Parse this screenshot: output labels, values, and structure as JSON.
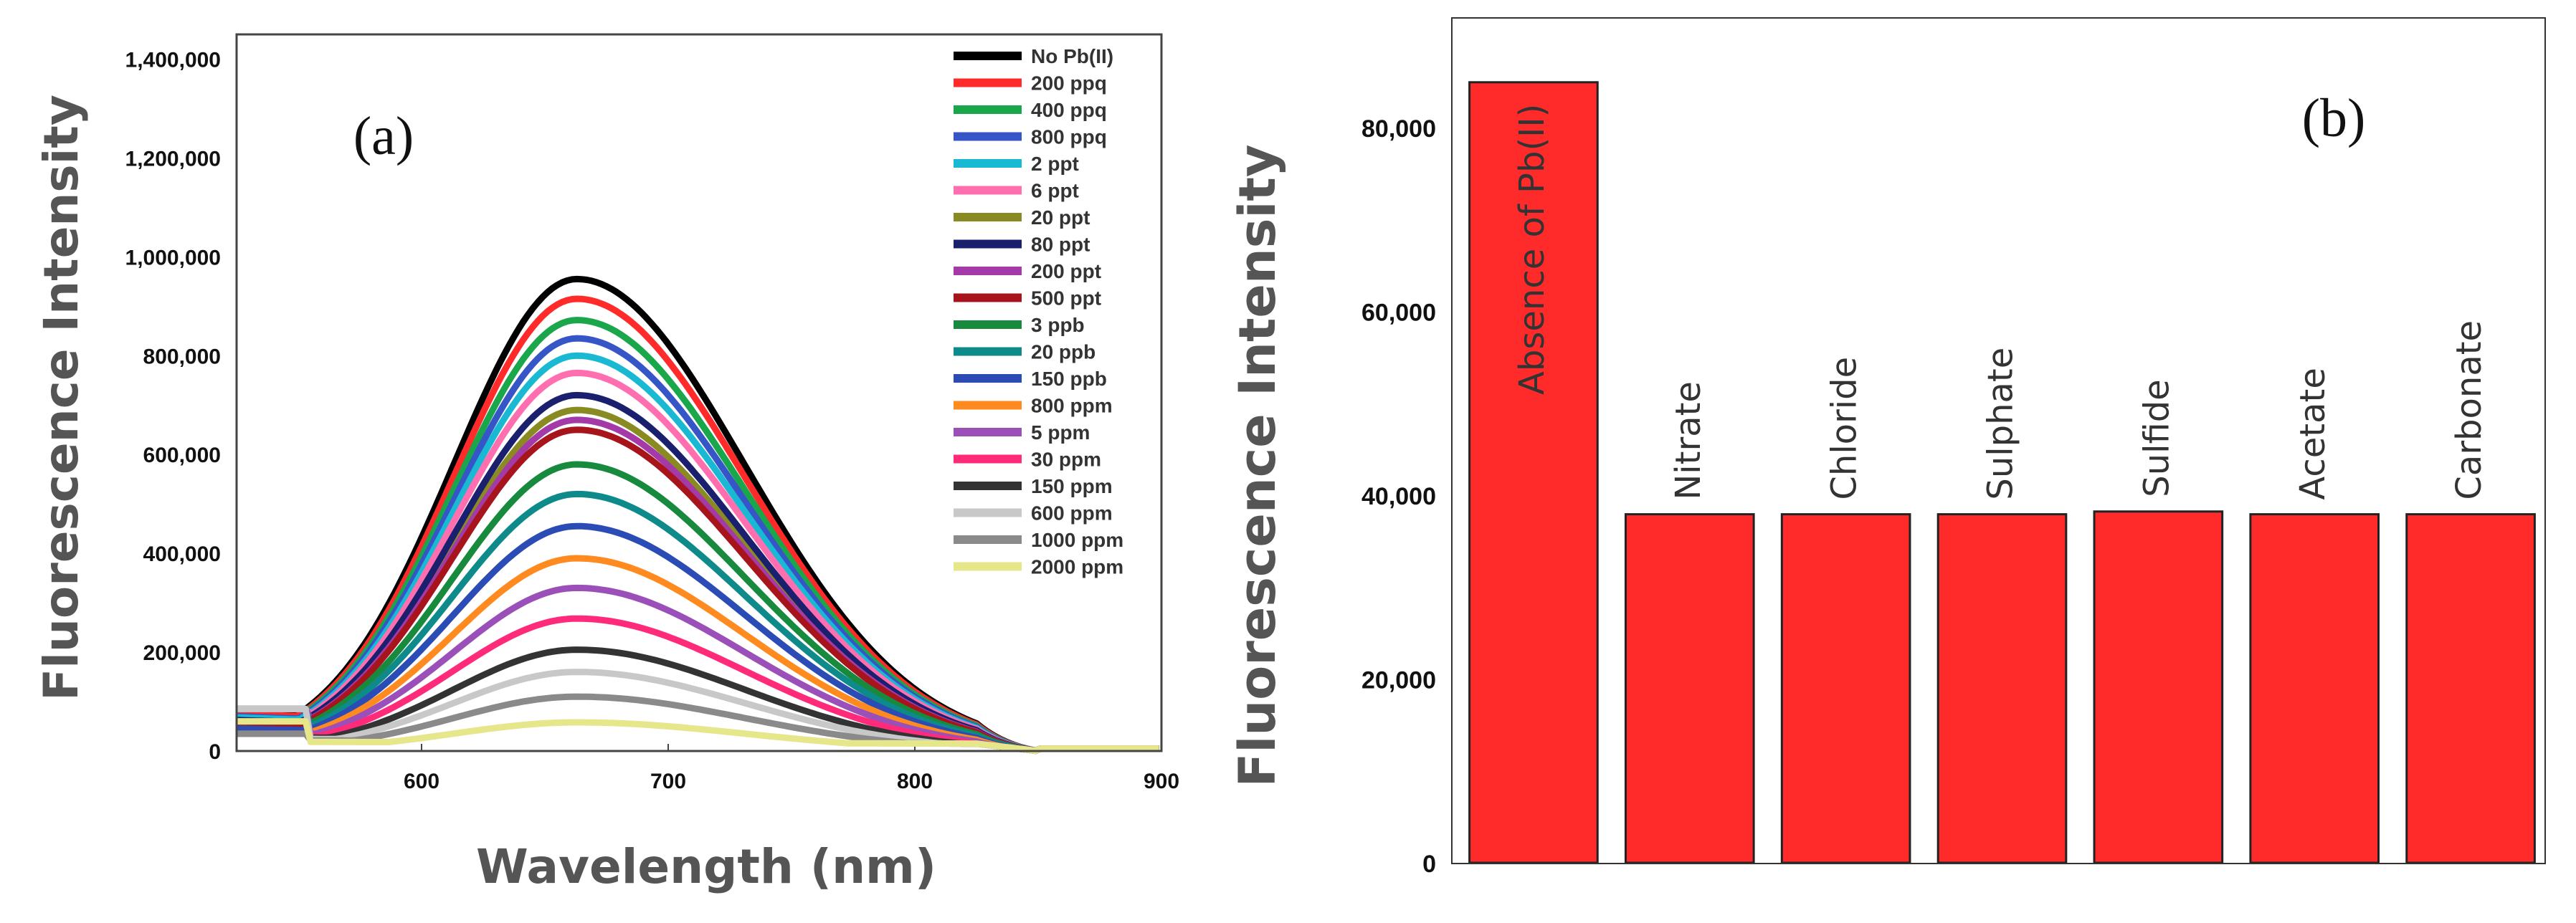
{
  "chart_data": [
    {
      "type": "line",
      "panel_label": "(a)",
      "title": "",
      "xlabel": "Wavelength (nm)",
      "ylabel": "Fluorescence Intensity",
      "xlim": [
        525,
        900
      ],
      "ylim": [
        0,
        1450000
      ],
      "xticks": [
        600,
        700,
        800,
        900
      ],
      "xtick_labels": [
        "600",
        "700",
        "800",
        "900"
      ],
      "yticks": [
        0,
        200000,
        400000,
        600000,
        800000,
        1000000,
        1200000,
        1400000
      ],
      "ytick_labels": [
        "0",
        "200,000",
        "400,000",
        "600,000",
        "800,000",
        "1,000,000",
        "1,200,000",
        "1,400,000"
      ],
      "peak_wavelength_nm": 663,
      "legend_position": "top-right",
      "series": [
        {
          "name": "No Pb(II)",
          "color": "#000000",
          "peak": 955000
        },
        {
          "name": "200 ppq",
          "color": "#ff2a2a",
          "peak": 915000
        },
        {
          "name": "400 ppq",
          "color": "#1aa64a",
          "peak": 872000
        },
        {
          "name": "800 ppq",
          "color": "#3656c8",
          "peak": 835000
        },
        {
          "name": "2 ppt",
          "color": "#19b9d4",
          "peak": 800000
        },
        {
          "name": "6 ppt",
          "color": "#ff6fb0",
          "peak": 765000
        },
        {
          "name": "20 ppt",
          "color": "#8a8a22",
          "peak": 690000
        },
        {
          "name": "80 ppt",
          "color": "#1a1f6e",
          "peak": 720000
        },
        {
          "name": "200 ppt",
          "color": "#a43aa8",
          "peak": 670000
        },
        {
          "name": "500 ppt",
          "color": "#a8141c",
          "peak": 650000
        },
        {
          "name": "3 ppb",
          "color": "#178a3e",
          "peak": 580000
        },
        {
          "name": "20 ppb",
          "color": "#0f8a8a",
          "peak": 520000
        },
        {
          "name": "150 ppb",
          "color": "#2b4bb5",
          "peak": 455000
        },
        {
          "name": "800 ppm",
          "color": "#ff8a1f",
          "peak": 390000
        },
        {
          "name": "5 ppm",
          "color": "#9b4fb8",
          "peak": 330000
        },
        {
          "name": "30 ppm",
          "color": "#ff2a7a",
          "peak": 268000
        },
        {
          "name": "150 ppm",
          "color": "#333333",
          "peak": 205000
        },
        {
          "name": "600 ppm",
          "color": "#c8c8c8",
          "peak": 160000
        },
        {
          "name": "1000 ppm",
          "color": "#8a8a8a",
          "peak": 110000
        },
        {
          "name": "2000 ppm",
          "color": "#e6e68a",
          "peak": 58000
        }
      ]
    },
    {
      "type": "bar",
      "panel_label": "(b)",
      "title": "",
      "xlabel": "",
      "ylabel": "Fluorescence Intensity",
      "ylim": [
        0,
        92000
      ],
      "yticks": [
        0,
        20000,
        40000,
        60000,
        80000
      ],
      "ytick_labels": [
        "0",
        "20,000",
        "40,000",
        "60,000",
        "80,000"
      ],
      "bar_color": "#ff2b2b",
      "categories": [
        "Absence of Pb(II)",
        "Nitrate",
        "Chloride",
        "Sulphate",
        "Sulfide",
        "Acetate",
        "Carbonate"
      ],
      "values": [
        85000,
        38000,
        38000,
        38000,
        38300,
        38000,
        38000
      ]
    }
  ]
}
